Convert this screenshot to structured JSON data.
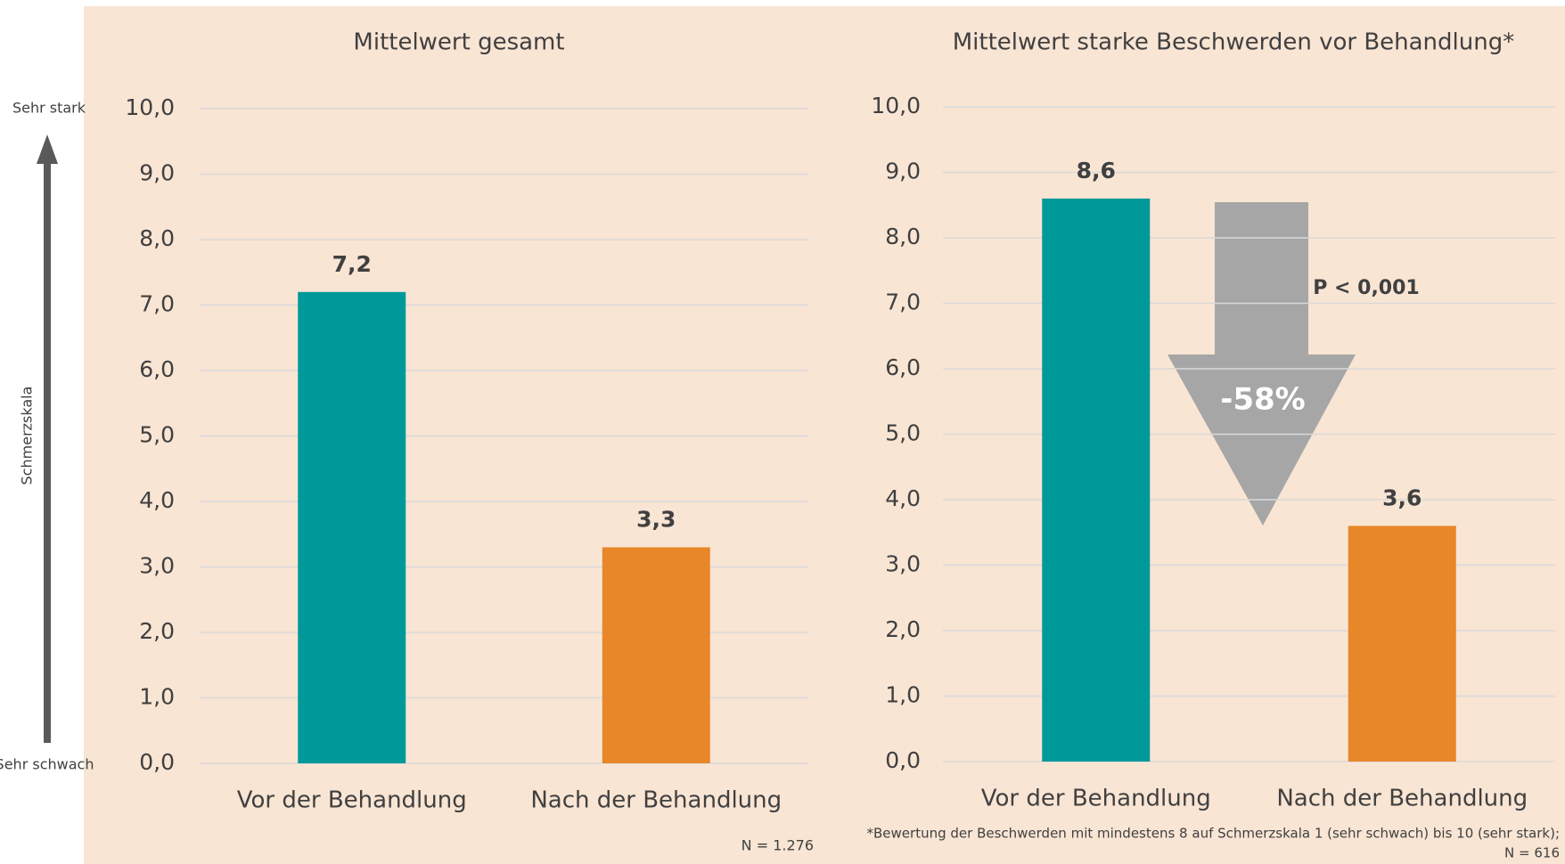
{
  "scale": {
    "label": "Schmerzskala",
    "top": "Sehr stark",
    "bottom": "Sehr schwach"
  },
  "chart_data": [
    {
      "type": "bar",
      "title": "Mittelwert gesamt",
      "categories": [
        "Vor der Behandlung",
        "Nach der Behandlung"
      ],
      "values": [
        7.2,
        3.3
      ],
      "value_labels": [
        "7,2",
        "3,3"
      ],
      "colors": [
        "#009999",
        "#e8862a"
      ],
      "ylim": [
        0,
        10
      ],
      "yticks": [
        {
          "value": 0,
          "label": "0,0"
        },
        {
          "value": 1,
          "label": "1,0"
        },
        {
          "value": 2,
          "label": "2,0"
        },
        {
          "value": 3,
          "label": "3,0"
        },
        {
          "value": 4,
          "label": "4,0"
        },
        {
          "value": 5,
          "label": "5,0"
        },
        {
          "value": 6,
          "label": "6,0"
        },
        {
          "value": 7,
          "label": "7,0"
        },
        {
          "value": 8,
          "label": "8,0"
        },
        {
          "value": 9,
          "label": "9,0"
        },
        {
          "value": 10,
          "label": "10,0"
        }
      ],
      "grid": true,
      "notes": [
        "N = 1.276"
      ]
    },
    {
      "type": "bar",
      "title": "Mittelwert starke Beschwerden vor Behandlung*",
      "categories": [
        "Vor der Behandlung",
        "Nach der Behandlung"
      ],
      "values": [
        8.6,
        3.6
      ],
      "value_labels": [
        "8,6",
        "3,6"
      ],
      "colors": [
        "#009999",
        "#e8862a"
      ],
      "ylim": [
        0,
        10
      ],
      "yticks": [
        {
          "value": 0,
          "label": "0,0"
        },
        {
          "value": 1,
          "label": "1,0"
        },
        {
          "value": 2,
          "label": "2,0"
        },
        {
          "value": 3,
          "label": "3,0"
        },
        {
          "value": 4,
          "label": "4,0"
        },
        {
          "value": 5,
          "label": "5,0"
        },
        {
          "value": 6,
          "label": "6,0"
        },
        {
          "value": 7,
          "label": "7,0"
        },
        {
          "value": 8,
          "label": "8,0"
        },
        {
          "value": 9,
          "label": "9,0"
        },
        {
          "value": 10,
          "label": "10,0"
        }
      ],
      "grid": true,
      "annotations": [
        "-58%",
        "P < 0,001"
      ],
      "notes": [
        "*Bewertung der Beschwerden mit mindestens 8 auf Schmerzskala 1 (sehr schwach) bis 10 (sehr stark);",
        "N = 616"
      ]
    }
  ]
}
